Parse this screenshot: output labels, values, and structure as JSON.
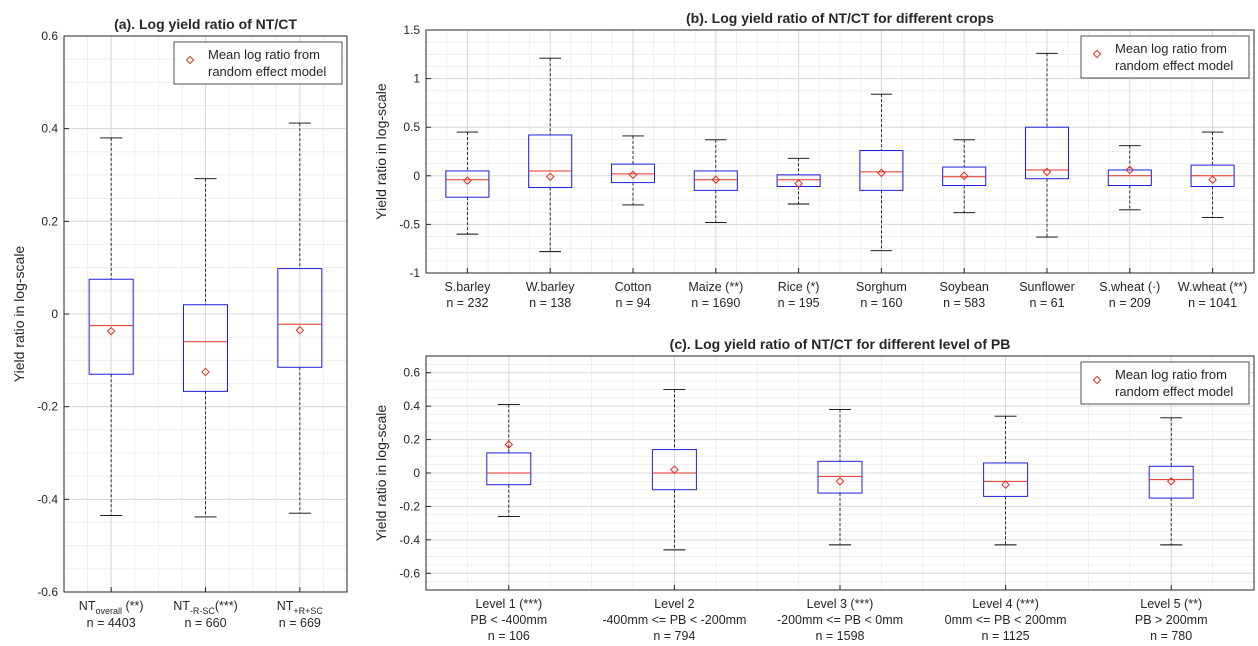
{
  "chart_data": [
    {
      "id": "a",
      "type": "box",
      "title": "(a). Log yield ratio of NT/CT",
      "ylabel": "Yield ratio in log-scale",
      "ylim": [
        -0.6,
        0.6
      ],
      "yticks": [
        -0.6,
        -0.4,
        -0.2,
        0,
        0.2,
        0.4,
        0.6
      ],
      "yticklabels": [
        "-0.6",
        "-0.4",
        "-0.2",
        "0",
        "0.2",
        "0.4",
        "0.6"
      ],
      "grid": true,
      "legend": {
        "position": "top-right",
        "lines": [
          "Mean log ratio from",
          "random effect model"
        ]
      },
      "categories": [
        {
          "base": "NT",
          "sub": "overall",
          "suffix": " (**)",
          "n": "n = 4403"
        },
        {
          "base": "NT",
          "sub": "-R-SC",
          "suffix": "(***)",
          "n": "n = 660"
        },
        {
          "base": "NT",
          "sub": "+R+SC",
          "suffix": "",
          "n": "n = 669"
        }
      ],
      "boxes": [
        {
          "whislo": -0.435,
          "q1": -0.13,
          "med": -0.025,
          "q3": 0.075,
          "whishi": 0.38,
          "mean": -0.037
        },
        {
          "whislo": -0.438,
          "q1": -0.167,
          "med": -0.06,
          "q3": 0.02,
          "whishi": 0.292,
          "mean": -0.125
        },
        {
          "whislo": -0.43,
          "q1": -0.115,
          "med": -0.022,
          "q3": 0.098,
          "whishi": 0.412,
          "mean": -0.035
        }
      ]
    },
    {
      "id": "b",
      "type": "box",
      "title": "(b). Log yield ratio of NT/CT for different crops",
      "ylabel": "Yield ratio in log-scale",
      "ylim": [
        -1,
        1.5
      ],
      "yticks": [
        -1,
        -0.5,
        0,
        0.5,
        1,
        1.5
      ],
      "yticklabels": [
        "-1",
        "-0.5",
        "0",
        "0.5",
        "1",
        "1.5"
      ],
      "grid": true,
      "legend": {
        "position": "top-right",
        "lines": [
          "Mean log ratio from",
          "random effect model"
        ]
      },
      "categories": [
        {
          "label": "S.barley",
          "n": "n = 232"
        },
        {
          "label": "W.barley",
          "n": "n = 138"
        },
        {
          "label": "Cotton",
          "n": "n = 94"
        },
        {
          "label": "Maize (**)",
          "n": "n = 1690"
        },
        {
          "label": "Rice (*)",
          "n": "n = 195"
        },
        {
          "label": "Sorghum",
          "n": "n = 160"
        },
        {
          "label": "Soybean",
          "n": "n = 583"
        },
        {
          "label": "Sunflower",
          "n": "n = 61"
        },
        {
          "label": "S.wheat (·)",
          "n": "n = 209"
        },
        {
          "label": "W.wheat (**)",
          "n": "n = 1041"
        }
      ],
      "boxes": [
        {
          "whislo": -0.6,
          "q1": -0.22,
          "med": -0.04,
          "q3": 0.05,
          "whishi": 0.45,
          "mean": -0.05
        },
        {
          "whislo": -0.78,
          "q1": -0.12,
          "med": 0.05,
          "q3": 0.42,
          "whishi": 1.21,
          "mean": -0.01
        },
        {
          "whislo": -0.3,
          "q1": -0.07,
          "med": 0.02,
          "q3": 0.12,
          "whishi": 0.41,
          "mean": 0.01
        },
        {
          "whislo": -0.48,
          "q1": -0.15,
          "med": -0.04,
          "q3": 0.05,
          "whishi": 0.37,
          "mean": -0.04
        },
        {
          "whislo": -0.29,
          "q1": -0.11,
          "med": -0.04,
          "q3": 0.01,
          "whishi": 0.18,
          "mean": -0.08
        },
        {
          "whislo": -0.77,
          "q1": -0.15,
          "med": 0.04,
          "q3": 0.26,
          "whishi": 0.84,
          "mean": 0.03
        },
        {
          "whislo": -0.38,
          "q1": -0.1,
          "med": -0.01,
          "q3": 0.09,
          "whishi": 0.37,
          "mean": 0.0
        },
        {
          "whislo": -0.63,
          "q1": -0.03,
          "med": 0.06,
          "q3": 0.5,
          "whishi": 1.26,
          "mean": 0.04
        },
        {
          "whislo": -0.35,
          "q1": -0.1,
          "med": 0.0,
          "q3": 0.06,
          "whishi": 0.31,
          "mean": 0.06
        },
        {
          "whislo": -0.43,
          "q1": -0.11,
          "med": 0.0,
          "q3": 0.11,
          "whishi": 0.45,
          "mean": -0.04
        }
      ]
    },
    {
      "id": "c",
      "type": "box",
      "title": "(c). Log yield ratio of NT/CT for different level of PB",
      "ylabel": "Yield ratio in log-scale",
      "ylim": [
        -0.7,
        0.7
      ],
      "yticks": [
        -0.6,
        -0.4,
        -0.2,
        0,
        0.2,
        0.4,
        0.6
      ],
      "yticklabels": [
        "-0.6",
        "-0.4",
        "-0.2",
        "0",
        "0.2",
        "0.4",
        "0.6"
      ],
      "grid": true,
      "legend": {
        "position": "top-right",
        "lines": [
          "Mean log ratio from",
          "random effect model"
        ]
      },
      "categories": [
        {
          "label": "Level 1 (***)",
          "range": "PB < -400mm",
          "n": "n = 106"
        },
        {
          "label": "Level 2",
          "range": "-400mm <= PB < -200mm",
          "n": "n = 794"
        },
        {
          "label": "Level 3 (***)",
          "range": "-200mm <= PB < 0mm",
          "n": "n = 1598"
        },
        {
          "label": "Level 4 (***)",
          "range": "0mm <= PB < 200mm",
          "n": "n = 1125"
        },
        {
          "label": "Level 5 (**)",
          "range": "PB > 200mm",
          "n": "n = 780"
        }
      ],
      "boxes": [
        {
          "whislo": -0.26,
          "q1": -0.07,
          "med": 0.0,
          "q3": 0.12,
          "whishi": 0.41,
          "mean": 0.17
        },
        {
          "whislo": -0.46,
          "q1": -0.1,
          "med": 0.0,
          "q3": 0.14,
          "whishi": 0.5,
          "mean": 0.02
        },
        {
          "whislo": -0.43,
          "q1": -0.12,
          "med": -0.02,
          "q3": 0.07,
          "whishi": 0.38,
          "mean": -0.05
        },
        {
          "whislo": -0.43,
          "q1": -0.14,
          "med": -0.05,
          "q3": 0.06,
          "whishi": 0.34,
          "mean": -0.07
        },
        {
          "whislo": -0.43,
          "q1": -0.15,
          "med": -0.04,
          "q3": 0.04,
          "whishi": 0.33,
          "mean": -0.05
        }
      ]
    }
  ]
}
